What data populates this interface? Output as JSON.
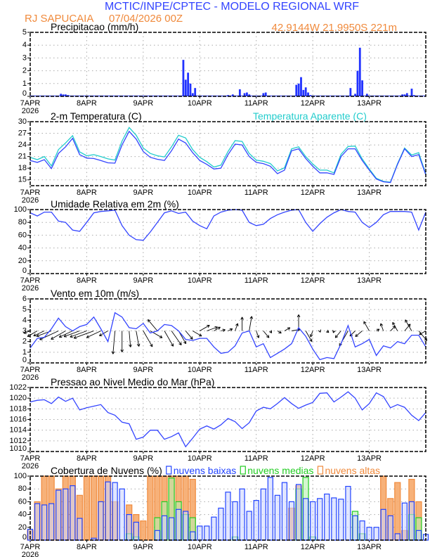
{
  "header": {
    "title": "MCTIC/INPE/CPTEC - MODELO REGIONAL WRF",
    "station": "RJ SAPUCAIA",
    "datetime": "07/04/2026 00Z",
    "coords": "42.9144W 21.9950S 221m",
    "title_color": "#3344ff",
    "accent_color": "#f08a3c"
  },
  "x_axis": {
    "day_labels": [
      "7APR",
      "8APR",
      "9APR",
      "10APR",
      "11APR",
      "12APR",
      "13APR"
    ],
    "year": "2026",
    "range_hours": [
      0,
      168
    ],
    "step_hours": 3
  },
  "chart_data": [
    {
      "type": "bar",
      "title": "Precipitacao (mm/h)",
      "ylim": [
        0,
        5
      ],
      "yticks": [
        "0",
        "1",
        "2",
        "3",
        "4",
        "5"
      ],
      "grid": true,
      "color": "#2233ff",
      "points_hour_value": [
        [
          13,
          0.2
        ],
        [
          14,
          0.15
        ],
        [
          15,
          0.15
        ],
        [
          16,
          0.1
        ],
        [
          37,
          0.05
        ],
        [
          65,
          2.85
        ],
        [
          66,
          1.3
        ],
        [
          67,
          1.85
        ],
        [
          68,
          1.0
        ],
        [
          69,
          0.25
        ],
        [
          70,
          0.65
        ],
        [
          84,
          0.1
        ],
        [
          86,
          0.15
        ],
        [
          89,
          0.55
        ],
        [
          91,
          0.25
        ],
        [
          92,
          0.3
        ],
        [
          93,
          0.15
        ],
        [
          99,
          0.25
        ],
        [
          100,
          0.3
        ],
        [
          113,
          0.9
        ],
        [
          114,
          1.0
        ],
        [
          115,
          1.5
        ],
        [
          116,
          0.5
        ],
        [
          117,
          0.7
        ],
        [
          118,
          0.3
        ],
        [
          119,
          0.1
        ],
        [
          124,
          0.05
        ],
        [
          136,
          0.65
        ],
        [
          138,
          0.2
        ],
        [
          139,
          2.0
        ],
        [
          140,
          3.8
        ],
        [
          141,
          1.25
        ],
        [
          143,
          0.2
        ],
        [
          158,
          0.15
        ],
        [
          159,
          0.15
        ],
        [
          160,
          0.25
        ],
        [
          162,
          0.6
        ],
        [
          163,
          0.1
        ]
      ]
    },
    {
      "type": "line",
      "title": "2-m Temperatura (C)",
      "ylim": [
        13.5,
        30
      ],
      "yticks": [
        "15",
        "18",
        "21",
        "24",
        "27",
        "30"
      ],
      "grid": true,
      "series": [
        {
          "name": "Temperatura Aparente (C)",
          "color": "#22cccc",
          "values": [
            20.8,
            20.2,
            21.0,
            18.6,
            22.8,
            24.5,
            26.4,
            22.2,
            21.2,
            21.5,
            21.0,
            20.4,
            20.1,
            25.0,
            28.5,
            26.5,
            23.2,
            21.8,
            21.2,
            20.9,
            23.5,
            26.5,
            25.8,
            22.8,
            20.8,
            19.7,
            18.3,
            18.8,
            22.3,
            25.1,
            24.9,
            21.8,
            20.1,
            19.8,
            19.2,
            17.3,
            18.1,
            23.0,
            23.5,
            21.0,
            19.1,
            17.5,
            17.5,
            16.8,
            21.6,
            23.6,
            23.7,
            20.4,
            17.8,
            15.4,
            14.6,
            14.4,
            19.2,
            23.2,
            21.4,
            22.0,
            16.5
          ]
        },
        {
          "name": "",
          "color": "#3344ff",
          "values": [
            20.0,
            19.5,
            20.2,
            17.9,
            21.8,
            23.5,
            25.7,
            21.5,
            20.6,
            20.5,
            20.0,
            19.4,
            19.3,
            24.0,
            27.5,
            25.5,
            22.3,
            20.8,
            20.3,
            20.0,
            22.5,
            25.5,
            24.5,
            22.0,
            20.0,
            19.0,
            17.8,
            18.0,
            21.5,
            24.2,
            24.0,
            21.0,
            19.5,
            19.2,
            18.5,
            16.6,
            17.5,
            22.5,
            23.0,
            20.5,
            18.5,
            16.8,
            16.8,
            16.4,
            21.0,
            23.0,
            23.0,
            20.0,
            17.5,
            15.2,
            14.5,
            14.3,
            19.0,
            23.0,
            21.0,
            21.5,
            16.3
          ]
        }
      ]
    },
    {
      "type": "line",
      "title": "Umidade Relativa em 2m (%)",
      "ylim": [
        0,
        100
      ],
      "yticks": [
        "0",
        "20",
        "40",
        "60",
        "80",
        "100"
      ],
      "grid": true,
      "series": [
        {
          "name": "",
          "color": "#3344ff",
          "values": [
            95,
            90,
            96,
            96,
            82,
            80,
            68,
            66,
            80,
            95,
            97,
            98,
            99,
            75,
            60,
            53,
            52,
            65,
            80,
            95,
            98,
            94,
            96,
            82,
            75,
            70,
            90,
            96,
            99,
            100,
            99,
            80,
            75,
            77,
            86,
            92,
            96,
            99,
            100,
            80,
            66,
            78,
            88,
            95,
            100,
            97,
            96,
            80,
            72,
            80,
            92,
            97,
            97,
            97,
            96,
            68,
            96
          ]
        }
      ]
    },
    {
      "type": "line",
      "title": "Vento em 10m (m/s)",
      "ylim": [
        0,
        6
      ],
      "yticks": [
        "0",
        "1",
        "2",
        "3",
        "4",
        "5",
        "6"
      ],
      "grid": true,
      "series": [
        {
          "name": "",
          "color": "#3344ff",
          "values": [
            1.4,
            2.3,
            2.4,
            3.2,
            4.2,
            3.4,
            3.0,
            3.4,
            3.6,
            4.3,
            3.2,
            2.0,
            4.7,
            4.3,
            3.3,
            3.2,
            3.7,
            2.8,
            3.0,
            3.6,
            3.5,
            3.0,
            2.2,
            2.1,
            2.3,
            2.3,
            1.5,
            0.9,
            1.0,
            1.6,
            2.8,
            3.0,
            1.5,
            1.8,
            0.5,
            0.9,
            1.3,
            1.8,
            3.3,
            2.5,
            1.3,
            0.3,
            0.5,
            0.4,
            1.8,
            3.5,
            1.5,
            1.8,
            2.2,
            0.7,
            1.6,
            1.4,
            2.0,
            1.8,
            2.6,
            2.6,
            1.5
          ]
        }
      ],
      "vectors": {
        "baseline": 3,
        "color": "#000000",
        "direction_toward_deg": [
          250,
          240,
          245,
          250,
          245,
          240,
          245,
          250,
          250,
          250,
          245,
          240,
          185,
          180,
          175,
          170,
          150,
          120,
          320,
          150,
          145,
          150,
          140,
          120,
          60,
          70,
          60,
          75,
          65,
          20,
          0,
          10,
          160,
          140,
          150,
          120,
          60,
          80,
          0,
          150,
          200,
          160,
          130,
          200,
          220,
          210,
          225,
          230,
          330,
          60,
          340,
          45,
          330,
          40,
          330,
          140,
          240
        ]
      }
    },
    {
      "type": "line",
      "title": "Pressao ao Nivel Medio do Mar (hPa)",
      "ylim": [
        1010,
        1022
      ],
      "yticks": [
        "1010",
        "1012",
        "1014",
        "1016",
        "1018",
        "1020",
        "1022"
      ],
      "grid": true,
      "series": [
        {
          "name": "",
          "color": "#3344ff",
          "values": [
            1019.3,
            1019.6,
            1019.7,
            1019.0,
            1020.2,
            1019.4,
            1020.0,
            1017.8,
            1018.2,
            1018.5,
            1018.8,
            1017.3,
            1016.8,
            1015.5,
            1015.2,
            1012.3,
            1012.7,
            1014.0,
            1014.0,
            1012.3,
            1012.8,
            1013.5,
            1010.9,
            1012.5,
            1014.2,
            1014.8,
            1014.2,
            1015.0,
            1016.2,
            1015.6,
            1014.3,
            1015.4,
            1017.6,
            1018.3,
            1018.0,
            1019.0,
            1020.1,
            1019.0,
            1018.1,
            1018.7,
            1019.2,
            1020.9,
            1021.0,
            1019.3,
            1020.2,
            1021.2,
            1020.0,
            1017.8,
            1019.0,
            1021.0,
            1020.3,
            1018.2,
            1018.8,
            1018.3,
            1016.8,
            1015.8,
            1017.3
          ]
        }
      ]
    },
    {
      "type": "bar",
      "title": "Cobertura de Nuvens (%)",
      "ylim": [
        0,
        100
      ],
      "yticks": [
        "0",
        "20",
        "40",
        "60",
        "80",
        "100"
      ],
      "grid": true,
      "legend": "top",
      "series": [
        {
          "name": "nuvens altas",
          "color": "#f08a3c",
          "fill": "#f6a96a",
          "values": [
            15,
            60,
            100,
            100,
            80,
            100,
            100,
            70,
            100,
            100,
            100,
            100,
            60,
            0,
            55,
            40,
            30,
            100,
            100,
            100,
            100,
            100,
            100,
            95,
            0,
            0,
            0,
            0,
            0,
            0,
            0,
            0,
            0,
            0,
            0,
            0,
            0,
            50,
            85,
            0,
            0,
            0,
            0,
            0,
            0,
            0,
            0,
            0,
            0,
            0,
            100,
            65,
            90,
            15,
            95,
            60,
            0
          ]
        },
        {
          "name": "nuvens medias",
          "color": "#22cc22",
          "fill": "#b8f0b0",
          "values": [
            0,
            0,
            0,
            0,
            0,
            0,
            0,
            0,
            0,
            0,
            0,
            0,
            0,
            0,
            10,
            5,
            0,
            0,
            35,
            60,
            97,
            60,
            40,
            35,
            0,
            0,
            0,
            0,
            0,
            5,
            0,
            0,
            0,
            0,
            0,
            0,
            0,
            0,
            80,
            98,
            5,
            0,
            0,
            0,
            0,
            0,
            45,
            10,
            0,
            0,
            0,
            0,
            0,
            0,
            40,
            35,
            0
          ]
        },
        {
          "name": "nuvens baixas",
          "color": "#2244ff",
          "fill": "#cdd6ff",
          "values": [
            17,
            57,
            55,
            57,
            78,
            80,
            85,
            34,
            0,
            3,
            60,
            91,
            90,
            80,
            40,
            28,
            0,
            0,
            15,
            38,
            35,
            48,
            45,
            13,
            22,
            22,
            36,
            50,
            75,
            60,
            80,
            45,
            62,
            80,
            98,
            70,
            90,
            60,
            87,
            65,
            60,
            65,
            72,
            66,
            64,
            84,
            38,
            30,
            20,
            20,
            48,
            38,
            10,
            58,
            60,
            15,
            9
          ]
        }
      ]
    }
  ]
}
